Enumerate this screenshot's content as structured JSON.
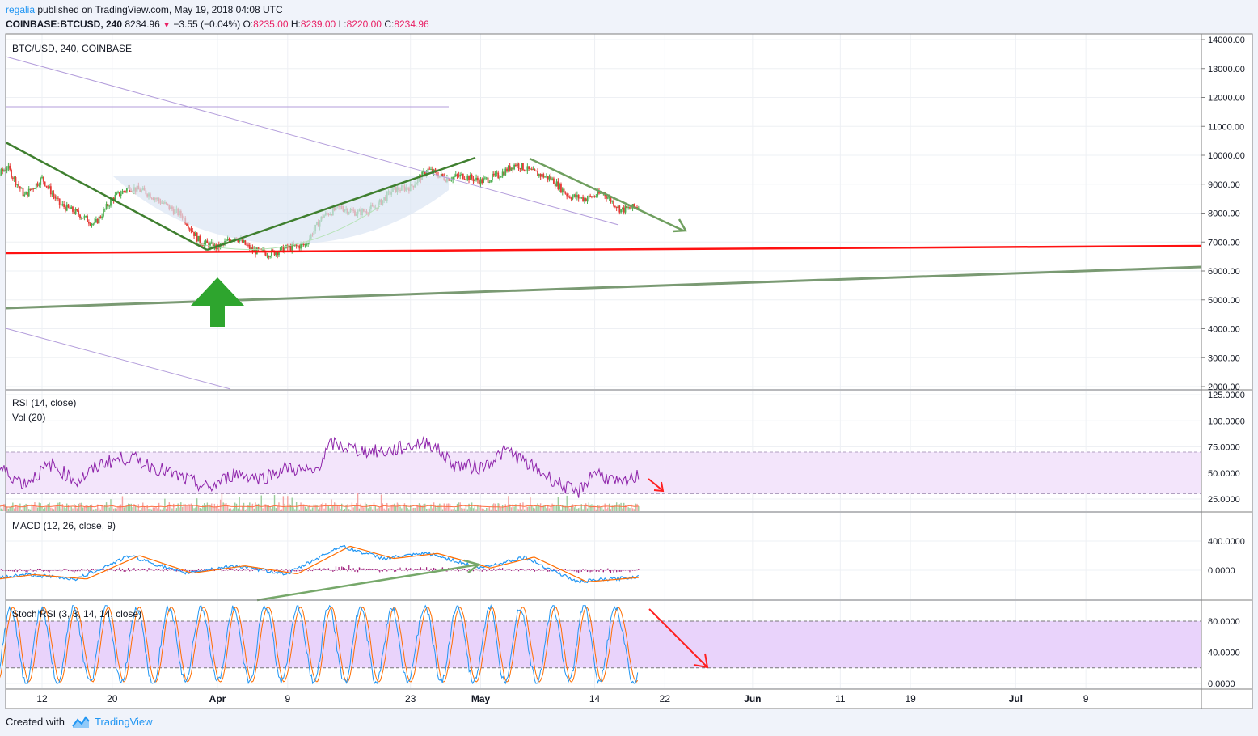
{
  "header": {
    "author": "regalia",
    "published_text": "published on TradingView.com, May 19, 2018 04:08 UTC",
    "symbol": "COINBASE:BTCUSD, 240",
    "last": "8234.96",
    "change": "−3.55 (−0.04%)",
    "open_label": "O:",
    "open": "8235.00",
    "high_label": "H:",
    "high": "8239.00",
    "low_label": "L:",
    "low": "8220.00",
    "close_label": "C:",
    "close": "8234.96"
  },
  "panes": {
    "price_label": "BTC/USD, 240, COINBASE",
    "rsi_label": "RSI (14, close)",
    "vol_label": "Vol (20)",
    "macd_label": "MACD (12, 26, close, 9)",
    "stoch_label": "Stoch RSI (3, 3, 14, 14, close)"
  },
  "footer": {
    "created_with": "Created with",
    "brand": "TradingView"
  },
  "colors": {
    "candle_up": "#4caf50",
    "candle_down": "#e53935",
    "support_line": "#ff1111",
    "trend_green": "#3f7f2f",
    "long_trend": "#7a9a73",
    "arrow_green": "#2ea52e",
    "arrow_red": "#ff1f1f",
    "rsi_line": "#8e24aa",
    "rsi_band": "#f3e5fb",
    "stoch_band": "#e9d3fb",
    "macd_line": "#2196f3",
    "signal_line": "#ff6d00",
    "hist": "#a1237e"
  },
  "chart_data": {
    "type": "candlestick",
    "symbol": "BTCUSD",
    "exchange": "COINBASE",
    "interval": "240",
    "price_axis": {
      "ticks": [
        "14000.00",
        "13000.00",
        "12000.00",
        "11000.00",
        "10000.00",
        "9000.00",
        "8000.00",
        "7000.00",
        "6000.00",
        "5000.00",
        "4000.00",
        "3000.00",
        "2000.00"
      ],
      "range": [
        2000,
        14000
      ]
    },
    "x_ticks": [
      {
        "label": "12",
        "date": "2018-03-12"
      },
      {
        "label": "20",
        "date": "2018-03-20"
      },
      {
        "label": "Apr",
        "date": "2018-04-01"
      },
      {
        "label": "9",
        "date": "2018-04-09"
      },
      {
        "label": "23",
        "date": "2018-04-23"
      },
      {
        "label": "May",
        "date": "2018-05-01"
      },
      {
        "label": "14",
        "date": "2018-05-14"
      },
      {
        "label": "22",
        "date": "2018-05-22"
      },
      {
        "label": "Jun",
        "date": "2018-06-01"
      },
      {
        "label": "11",
        "date": "2018-06-11"
      },
      {
        "label": "19",
        "date": "2018-06-19"
      },
      {
        "label": "Jul",
        "date": "2018-07-01"
      },
      {
        "label": "9",
        "date": "2018-07-09"
      }
    ],
    "close_path": [
      [
        "2018-03-04",
        9900
      ],
      [
        "2018-03-06",
        9000
      ],
      [
        "2018-03-08",
        9600
      ],
      [
        "2018-03-10",
        8600
      ],
      [
        "2018-03-12",
        9200
      ],
      [
        "2018-03-14",
        8300
      ],
      [
        "2018-03-16",
        8000
      ],
      [
        "2018-03-18",
        7600
      ],
      [
        "2018-03-20",
        8500
      ],
      [
        "2018-03-22",
        8900
      ],
      [
        "2018-03-24",
        8700
      ],
      [
        "2018-03-26",
        8300
      ],
      [
        "2018-03-28",
        7900
      ],
      [
        "2018-03-30",
        7000
      ],
      [
        "2018-04-01",
        6800
      ],
      [
        "2018-04-03",
        7200
      ],
      [
        "2018-04-05",
        6700
      ],
      [
        "2018-04-07",
        6600
      ],
      [
        "2018-04-09",
        6800
      ],
      [
        "2018-04-11",
        6900
      ],
      [
        "2018-04-13",
        7900
      ],
      [
        "2018-04-15",
        8200
      ],
      [
        "2018-04-17",
        8000
      ],
      [
        "2018-04-19",
        8200
      ],
      [
        "2018-04-21",
        8800
      ],
      [
        "2018-04-23",
        8900
      ],
      [
        "2018-04-25",
        9500
      ],
      [
        "2018-04-27",
        9200
      ],
      [
        "2018-04-29",
        9300
      ],
      [
        "2018-05-01",
        9100
      ],
      [
        "2018-05-03",
        9300
      ],
      [
        "2018-05-05",
        9700
      ],
      [
        "2018-05-07",
        9400
      ],
      [
        "2018-05-09",
        9200
      ],
      [
        "2018-05-11",
        8600
      ],
      [
        "2018-05-13",
        8500
      ],
      [
        "2018-05-15",
        8700
      ],
      [
        "2018-05-17",
        8100
      ],
      [
        "2018-05-19",
        8235
      ]
    ],
    "last_price": 8234.96,
    "rsi": {
      "period": 14,
      "axis_ticks": [
        "125.0000",
        "100.0000",
        "75.0000",
        "50.0000",
        "25.0000"
      ],
      "bands": [
        30,
        70
      ],
      "path": [
        [
          "2018-03-04",
          38
        ],
        [
          "2018-03-07",
          55
        ],
        [
          "2018-03-10",
          40
        ],
        [
          "2018-03-13",
          58
        ],
        [
          "2018-03-16",
          42
        ],
        [
          "2018-03-19",
          60
        ],
        [
          "2018-03-22",
          65
        ],
        [
          "2018-03-25",
          55
        ],
        [
          "2018-03-28",
          45
        ],
        [
          "2018-03-31",
          35
        ],
        [
          "2018-04-03",
          50
        ],
        [
          "2018-04-06",
          45
        ],
        [
          "2018-04-09",
          55
        ],
        [
          "2018-04-12",
          50
        ],
        [
          "2018-04-14",
          78
        ],
        [
          "2018-04-17",
          72
        ],
        [
          "2018-04-20",
          70
        ],
        [
          "2018-04-23",
          76
        ],
        [
          "2018-04-25",
          80
        ],
        [
          "2018-04-28",
          58
        ],
        [
          "2018-05-01",
          55
        ],
        [
          "2018-05-04",
          72
        ],
        [
          "2018-05-07",
          55
        ],
        [
          "2018-05-10",
          40
        ],
        [
          "2018-05-12",
          30
        ],
        [
          "2018-05-14",
          52
        ],
        [
          "2018-05-17",
          38
        ],
        [
          "2018-05-19",
          48
        ]
      ]
    },
    "macd": {
      "params": [
        12,
        26,
        9
      ],
      "axis_ticks": [
        "400.0000",
        "0.0000"
      ],
      "path": [
        [
          "2018-03-04",
          -150
        ],
        [
          "2018-03-10",
          -60
        ],
        [
          "2018-03-16",
          -120
        ],
        [
          "2018-03-22",
          200
        ],
        [
          "2018-03-28",
          -40
        ],
        [
          "2018-04-03",
          60
        ],
        [
          "2018-04-09",
          -50
        ],
        [
          "2018-04-15",
          330
        ],
        [
          "2018-04-20",
          160
        ],
        [
          "2018-04-25",
          230
        ],
        [
          "2018-05-01",
          30
        ],
        [
          "2018-05-06",
          180
        ],
        [
          "2018-05-12",
          -160
        ],
        [
          "2018-05-19",
          -90
        ]
      ]
    },
    "stoch_rsi": {
      "params": [
        3,
        3,
        14,
        14
      ],
      "axis_ticks": [
        "80.0000",
        "40.0000",
        "0.0000"
      ],
      "bands": [
        20,
        80
      ]
    }
  }
}
